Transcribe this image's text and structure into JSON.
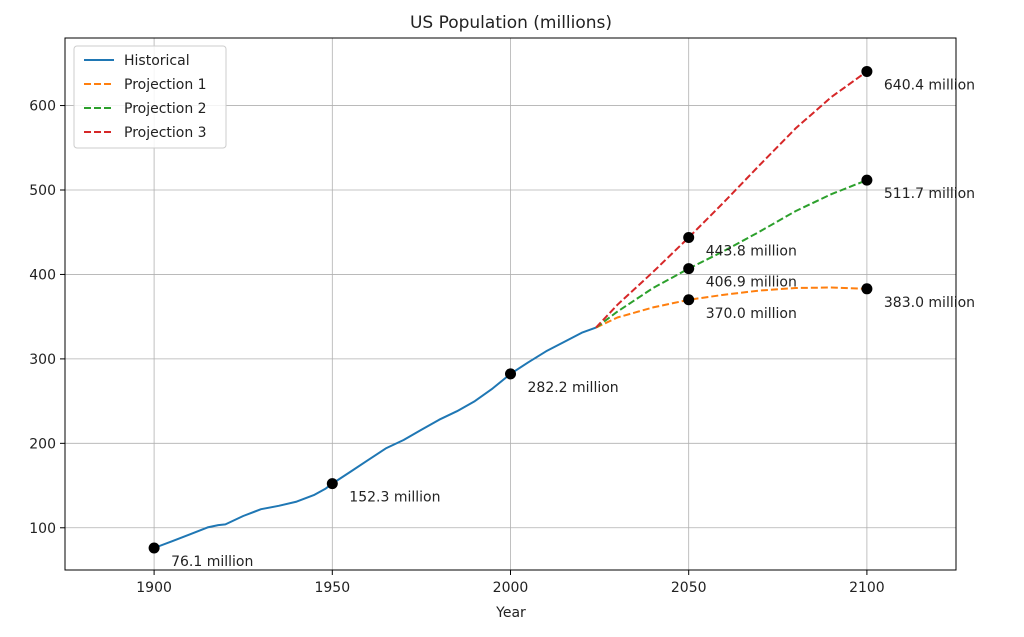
{
  "chart_data": {
    "type": "line",
    "title": "US Population (millions)",
    "xlabel": "Year",
    "ylabel": "",
    "xlim": [
      1875,
      2125
    ],
    "ylim": [
      50,
      680
    ],
    "grid": true,
    "legend_position": "top-left",
    "x_ticks": [
      1900,
      1950,
      2000,
      2050,
      2100
    ],
    "y_ticks": [
      100,
      200,
      300,
      400,
      500,
      600
    ],
    "series": [
      {
        "name": "Historical",
        "color": "#1f77b4",
        "style": "solid",
        "x": [
          1900,
          1905,
          1910,
          1915,
          1918,
          1920,
          1925,
          1930,
          1935,
          1940,
          1945,
          1948,
          1950,
          1955,
          1960,
          1965,
          1970,
          1975,
          1980,
          1985,
          1990,
          1995,
          2000,
          2005,
          2010,
          2015,
          2020,
          2024
        ],
        "y": [
          76.1,
          84,
          92.2,
          100.5,
          103.2,
          104,
          114,
          122,
          126,
          131,
          139,
          146,
          152.3,
          166,
          180,
          194,
          204,
          216,
          228,
          238,
          250,
          265,
          282.2,
          296,
          309,
          320,
          331,
          337
        ]
      },
      {
        "name": "Projection 1",
        "color": "#ff7f0e",
        "style": "dashed",
        "x": [
          2024,
          2030,
          2040,
          2050,
          2060,
          2070,
          2080,
          2090,
          2100
        ],
        "y": [
          337,
          349,
          361,
          370.0,
          376,
          381,
          384,
          384.5,
          383.0
        ]
      },
      {
        "name": "Projection 2",
        "color": "#2ca02c",
        "style": "dashed",
        "x": [
          2024,
          2030,
          2040,
          2050,
          2060,
          2070,
          2080,
          2090,
          2100
        ],
        "y": [
          337,
          356,
          384,
          406.9,
          428,
          451,
          475,
          495,
          511.7
        ]
      },
      {
        "name": "Projection 3",
        "color": "#d62728",
        "style": "dashed",
        "x": [
          2024,
          2030,
          2040,
          2050,
          2060,
          2070,
          2080,
          2090,
          2100
        ],
        "y": [
          337,
          364,
          403,
          443.8,
          486,
          530,
          573,
          610,
          640.4
        ]
      }
    ],
    "markers": [
      {
        "x": 1900,
        "y": 76.1,
        "label": "76.1 million"
      },
      {
        "x": 1950,
        "y": 152.3,
        "label": "152.3 million"
      },
      {
        "x": 2000,
        "y": 282.2,
        "label": "282.2 million"
      },
      {
        "x": 2050,
        "y": 370.0,
        "label": "370.0 million"
      },
      {
        "x": 2050,
        "y": 406.9,
        "label": "406.9 million"
      },
      {
        "x": 2050,
        "y": 443.8,
        "label": "443.8 million"
      },
      {
        "x": 2100,
        "y": 383.0,
        "label": "383.0 million"
      },
      {
        "x": 2100,
        "y": 511.7,
        "label": "511.7 million"
      },
      {
        "x": 2100,
        "y": 640.4,
        "label": "640.4 million"
      }
    ]
  }
}
